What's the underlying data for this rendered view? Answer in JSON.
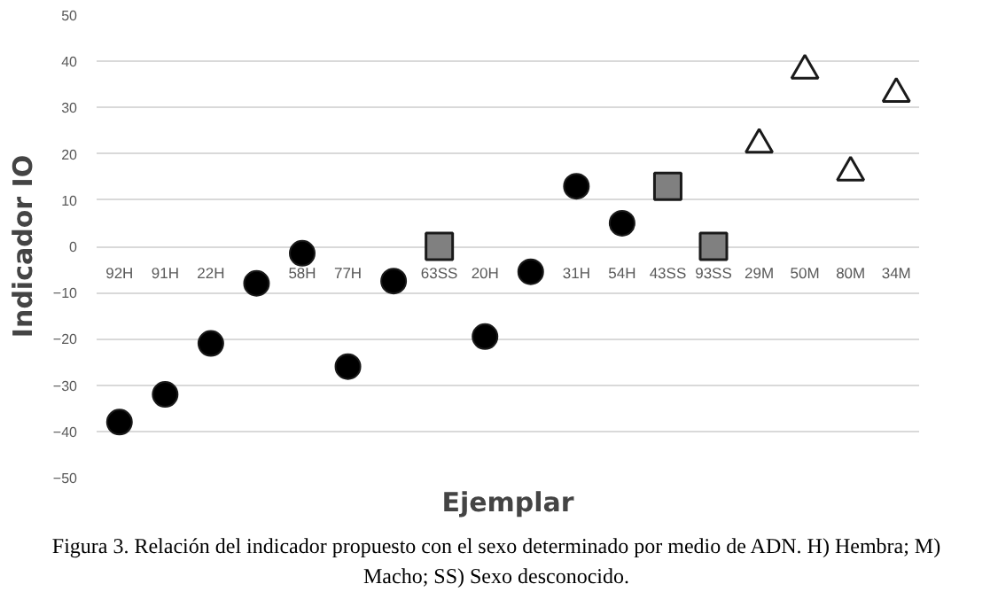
{
  "chart_data": {
    "type": "scatter",
    "xlabel": "Ejemplar",
    "ylabel": "Indicador IO",
    "categories": [
      "92H",
      "91H",
      "22H",
      null,
      "58H",
      "77H",
      null,
      "63SS",
      "20H",
      null,
      "31H",
      "54H",
      "43SS",
      "93SS",
      "29M",
      "50M",
      "80M",
      "34M"
    ],
    "series": [
      {
        "color": "#000000",
        "marker": "circle",
        "values": [
          -38,
          -32,
          -21,
          -8,
          -1.5,
          -26,
          -7.5,
          null,
          -19.5,
          -5.5,
          13,
          5,
          null,
          null,
          null,
          null,
          null,
          null
        ]
      },
      {
        "color": "#808080",
        "marker": "square",
        "values": [
          null,
          null,
          null,
          null,
          null,
          null,
          null,
          0,
          null,
          null,
          null,
          null,
          13,
          0,
          null,
          null,
          null,
          null
        ]
      },
      {
        "color": "#ffffff",
        "marker": "triangle",
        "values": [
          null,
          null,
          null,
          null,
          null,
          null,
          null,
          null,
          null,
          null,
          null,
          null,
          null,
          null,
          22,
          38,
          16,
          33
        ]
      }
    ],
    "ylim": [
      -50,
      50
    ],
    "yticks": [
      -50,
      -40,
      -30,
      -20,
      -10,
      0,
      10,
      20,
      30,
      40,
      50
    ],
    "grid": "y",
    "annotations": [
      "Figura 3. Relación del indicador propuesto con el sexo determinado por medio de ADN. H) Hembra; M) Macho; SS) Sexo desconocido."
    ]
  }
}
